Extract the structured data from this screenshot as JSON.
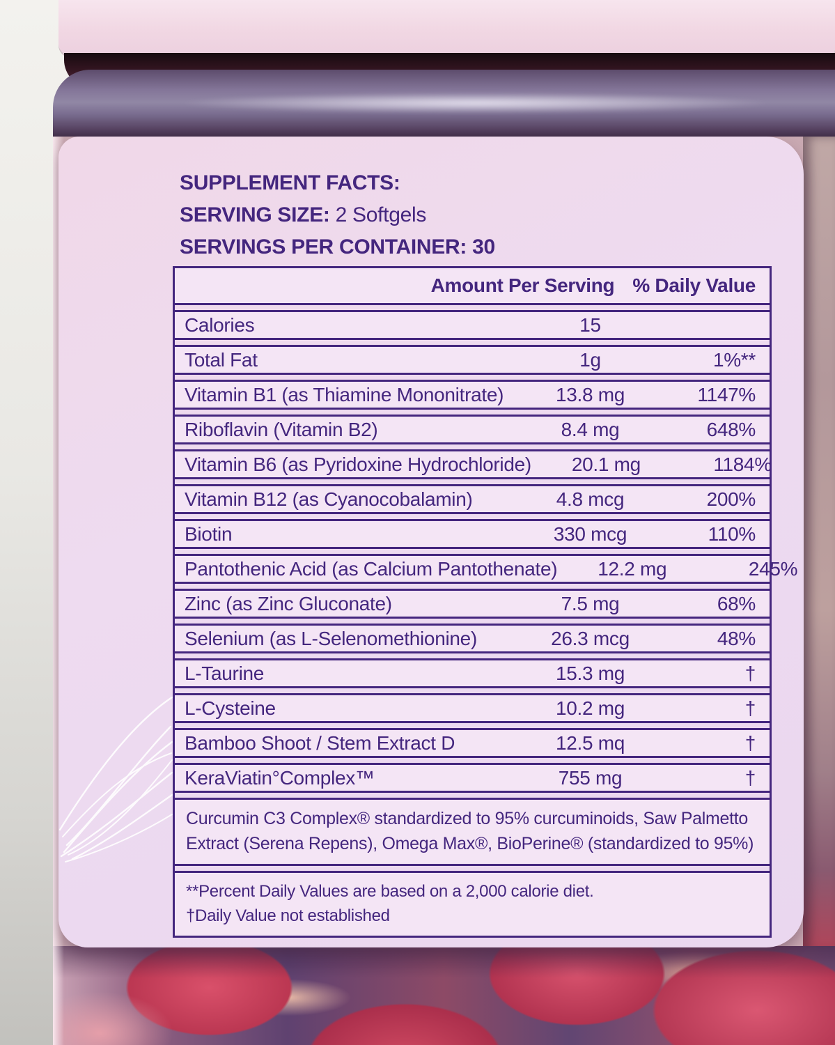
{
  "colors": {
    "ink": "#44267e",
    "label_bg": "#eedbf0",
    "row_bg": "#f4e5f5",
    "cap_pink": "#f1d7e3",
    "softgel_red": "#c23a52",
    "shoulder_purple": "#857798",
    "background_grey": "#e9e8e4"
  },
  "product_label": {
    "header": {
      "title": "SUPPLEMENT FACTS:",
      "serving_size_label": "SERVING SIZE:",
      "serving_size_value": " 2 Softgels",
      "servings_label": "SERVINGS PER CONTAINER:",
      "servings_value": " 30"
    },
    "table": {
      "amount_header": "Amount Per Serving",
      "dv_header": "% Daily Value",
      "rows": [
        {
          "name": "Calories",
          "amount": "15",
          "dv": ""
        },
        {
          "name": "Total Fat",
          "amount": "1g",
          "dv": "1%**"
        },
        {
          "name": "Vitamin B1 (as Thiamine Mononitrate)",
          "amount": "13.8 mg",
          "dv": "1147%"
        },
        {
          "name": "Riboflavin (Vitamin B2)",
          "amount": "8.4 mg",
          "dv": "648%"
        },
        {
          "name": "Vitamin B6 (as Pyridoxine Hydrochloride)",
          "amount": "20.1 mg",
          "dv": "1184%"
        },
        {
          "name": "Vitamin B12 (as Cyanocobalamin)",
          "amount": "4.8 mcg",
          "dv": "200%"
        },
        {
          "name": "Biotin",
          "amount": "330 mcg",
          "dv": "110%"
        },
        {
          "name": "Pantothenic Acid (as Calcium Pantothenate)",
          "amount": "12.2 mg",
          "dv": "245%"
        },
        {
          "name": "Zinc (as Zinc Gluconate)",
          "amount": "7.5 mg",
          "dv": "68%"
        },
        {
          "name": "Selenium (as L-Selenomethionine)",
          "amount": "26.3 mcg",
          "dv": "48%"
        },
        {
          "name": "L-Taurine",
          "amount": "15.3 mg",
          "dv": "†"
        },
        {
          "name": "L-Cysteine",
          "amount": "10.2 mg",
          "dv": "†"
        },
        {
          "name": "Bamboo Shoot / Stem Extract D",
          "amount": "12.5 mq",
          "dv": "†"
        },
        {
          "name": "KeraViatin°Complex™",
          "amount": "755 mg",
          "dv": "†"
        }
      ],
      "blend_note": "Curcumin C3 Complex® standardized to 95% curcuminoids, Saw Palmetto Extract (Serena Repens), Omega Max®, BioPerine® (standardized to 95%)",
      "footnotes": [
        "**Percent Daily Values are based on a 2,000 calorie diet.",
        "†Daily Value not established"
      ]
    }
  }
}
